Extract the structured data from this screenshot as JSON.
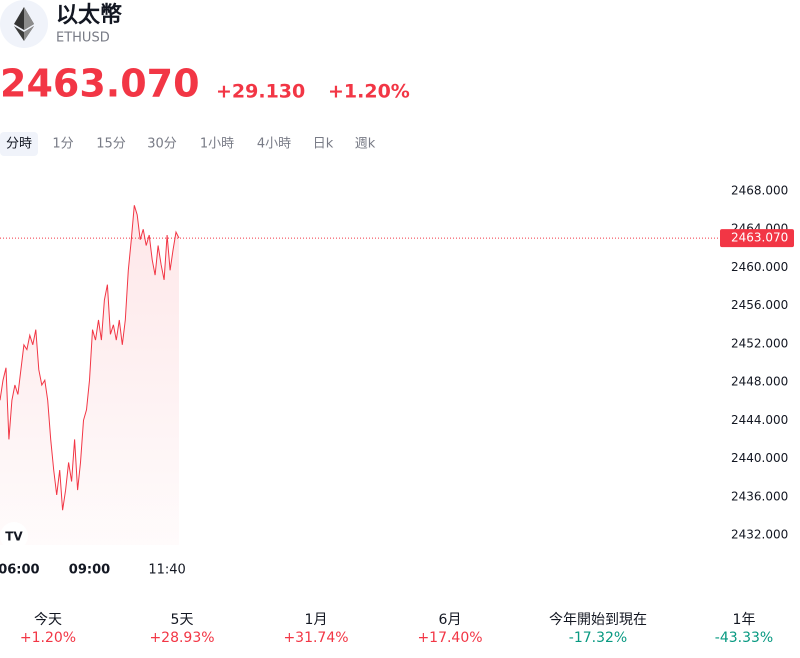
{
  "header": {
    "title": "以太幣",
    "symbol": "ETHUSD",
    "price": "2463.070",
    "change": "+29.130",
    "change_pct": "+1.20%"
  },
  "tabs": [
    "分時",
    "1分",
    "15分",
    "30分",
    "1小時",
    "4小時",
    "日k",
    "週k"
  ],
  "chart_data": {
    "type": "line",
    "color": "#f23645",
    "categories": [
      null,
      null,
      null,
      null,
      null,
      null,
      "06:00",
      null,
      null,
      null,
      null,
      null,
      null,
      null,
      null,
      null,
      null,
      null,
      null,
      null,
      null,
      null,
      null,
      null,
      null,
      null,
      null,
      null,
      null,
      null,
      "09:00",
      null,
      null,
      null,
      null,
      null,
      null,
      null,
      null,
      null,
      null,
      null,
      null,
      null,
      null,
      null,
      null,
      null,
      null,
      null,
      null,
      null,
      null,
      null,
      null,
      null,
      "11:40",
      null,
      null,
      null,
      null
    ],
    "values": [
      2446.1,
      2448.2,
      2449.5,
      2442.0,
      2446.1,
      2447.7,
      2446.7,
      2449.3,
      2451.9,
      2451.4,
      2452.9,
      2451.9,
      2453.5,
      2449.3,
      2447.7,
      2448.2,
      2446.1,
      2442.0,
      2438.8,
      2436.2,
      2438.8,
      2434.6,
      2436.7,
      2439.6,
      2437.6,
      2442.0,
      2436.7,
      2439.6,
      2444.0,
      2445.1,
      2448.2,
      2453.5,
      2452.4,
      2454.5,
      2452.4,
      2456.6,
      2458.2,
      2453.0,
      2454.0,
      2452.4,
      2454.5,
      2451.9,
      2454.5,
      2459.7,
      2462.9,
      2466.5,
      2465.5,
      2462.9,
      2464.0,
      2462.3,
      2463.4,
      2460.8,
      2459.2,
      2462.3,
      2460.3,
      2458.7,
      2463.4,
      2459.7,
      2461.8,
      2463.7,
      2463.07
    ],
    "ylim": [
      2432,
      2468
    ],
    "yticks": [
      {
        "value": 2432,
        "label": "2432.000"
      },
      {
        "value": 2436,
        "label": "2436.000"
      },
      {
        "value": 2440,
        "label": "2440.000"
      },
      {
        "value": 2444,
        "label": "2444.000"
      },
      {
        "value": 2448,
        "label": "2448.000"
      },
      {
        "value": 2452,
        "label": "2452.000"
      },
      {
        "value": 2456,
        "label": "2456.000"
      },
      {
        "value": 2460,
        "label": "2460.000"
      },
      {
        "value": 2464,
        "label": "2464.000"
      },
      {
        "value": 2468,
        "label": "2468.000"
      }
    ],
    "last_price": {
      "value": 2463.07,
      "label": "2463.070"
    }
  },
  "periods": [
    {
      "label": "今天",
      "change": "+1.20%",
      "up": true
    },
    {
      "label": "5天",
      "change": "+28.93%",
      "up": true
    },
    {
      "label": "1月",
      "change": "+31.74%",
      "up": true
    },
    {
      "label": "6月",
      "change": "+17.40%",
      "up": true
    },
    {
      "label": "今年開始到現在",
      "change": "-17.32%",
      "up": false
    },
    {
      "label": "1年",
      "change": "-43.33%",
      "up": false
    }
  ]
}
